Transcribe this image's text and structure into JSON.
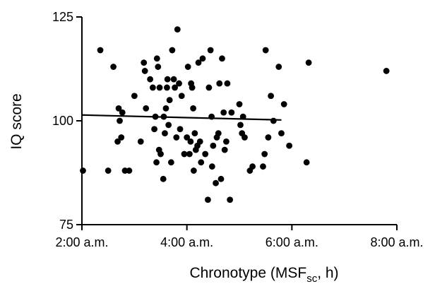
{
  "chart_data": {
    "type": "scatter",
    "xlabel_main": "Chronotype (MSF",
    "xlabel_sub": "sc",
    "xlabel_tail": ", h)",
    "ylabel": "IQ score",
    "xlim": [
      2,
      8
    ],
    "ylim": [
      75,
      125
    ],
    "xticks": [
      2,
      4,
      6,
      8
    ],
    "xtick_labels": [
      "2:00 a.m.",
      "4:00 a.m.",
      "6:00 a.m.",
      "8:00 a.m."
    ],
    "yticks": [
      75,
      100,
      125
    ],
    "ytick_labels": [
      "75",
      "100",
      "125"
    ],
    "trendline": {
      "x": [
        2.0,
        5.8
      ],
      "y": [
        101.4,
        100.2
      ]
    },
    "points": [
      {
        "x": 2.02,
        "y": 88
      },
      {
        "x": 2.35,
        "y": 117
      },
      {
        "x": 2.5,
        "y": 88
      },
      {
        "x": 2.6,
        "y": 113
      },
      {
        "x": 2.68,
        "y": 95
      },
      {
        "x": 2.7,
        "y": 103
      },
      {
        "x": 2.72,
        "y": 100
      },
      {
        "x": 2.75,
        "y": 96
      },
      {
        "x": 2.77,
        "y": 102
      },
      {
        "x": 2.82,
        "y": 88
      },
      {
        "x": 2.9,
        "y": 88
      },
      {
        "x": 3.0,
        "y": 106
      },
      {
        "x": 3.12,
        "y": 95
      },
      {
        "x": 3.18,
        "y": 114
      },
      {
        "x": 3.2,
        "y": 112
      },
      {
        "x": 3.22,
        "y": 103
      },
      {
        "x": 3.3,
        "y": 110
      },
      {
        "x": 3.35,
        "y": 108
      },
      {
        "x": 3.38,
        "y": 98
      },
      {
        "x": 3.4,
        "y": 101
      },
      {
        "x": 3.42,
        "y": 90
      },
      {
        "x": 3.43,
        "y": 115
      },
      {
        "x": 3.45,
        "y": 113
      },
      {
        "x": 3.47,
        "y": 93
      },
      {
        "x": 3.48,
        "y": 108
      },
      {
        "x": 3.5,
        "y": 92
      },
      {
        "x": 3.55,
        "y": 86
      },
      {
        "x": 3.56,
        "y": 101
      },
      {
        "x": 3.58,
        "y": 97
      },
      {
        "x": 3.6,
        "y": 103
      },
      {
        "x": 3.62,
        "y": 108
      },
      {
        "x": 3.63,
        "y": 110
      },
      {
        "x": 3.65,
        "y": 99
      },
      {
        "x": 3.67,
        "y": 105
      },
      {
        "x": 3.7,
        "y": 90
      },
      {
        "x": 3.72,
        "y": 117
      },
      {
        "x": 3.75,
        "y": 110
      },
      {
        "x": 3.77,
        "y": 108
      },
      {
        "x": 3.8,
        "y": 96
      },
      {
        "x": 3.82,
        "y": 122
      },
      {
        "x": 3.85,
        "y": 109
      },
      {
        "x": 3.87,
        "y": 98
      },
      {
        "x": 3.9,
        "y": 106
      },
      {
        "x": 3.95,
        "y": 92
      },
      {
        "x": 4.0,
        "y": 96
      },
      {
        "x": 4.02,
        "y": 113
      },
      {
        "x": 4.05,
        "y": 92
      },
      {
        "x": 4.07,
        "y": 95
      },
      {
        "x": 4.08,
        "y": 109
      },
      {
        "x": 4.1,
        "y": 108
      },
      {
        "x": 4.12,
        "y": 103
      },
      {
        "x": 4.13,
        "y": 88
      },
      {
        "x": 4.15,
        "y": 97
      },
      {
        "x": 4.17,
        "y": 93
      },
      {
        "x": 4.2,
        "y": 94
      },
      {
        "x": 4.22,
        "y": 114
      },
      {
        "x": 4.25,
        "y": 95
      },
      {
        "x": 4.27,
        "y": 90
      },
      {
        "x": 4.3,
        "y": 115
      },
      {
        "x": 4.35,
        "y": 92
      },
      {
        "x": 4.4,
        "y": 81
      },
      {
        "x": 4.42,
        "y": 108
      },
      {
        "x": 4.45,
        "y": 117
      },
      {
        "x": 4.47,
        "y": 101
      },
      {
        "x": 4.48,
        "y": 89
      },
      {
        "x": 4.5,
        "y": 94
      },
      {
        "x": 4.55,
        "y": 85
      },
      {
        "x": 4.57,
        "y": 96
      },
      {
        "x": 4.6,
        "y": 97
      },
      {
        "x": 4.62,
        "y": 109
      },
      {
        "x": 4.65,
        "y": 86
      },
      {
        "x": 4.67,
        "y": 115
      },
      {
        "x": 4.7,
        "y": 102
      },
      {
        "x": 4.72,
        "y": 93
      },
      {
        "x": 4.75,
        "y": 95
      },
      {
        "x": 4.77,
        "y": 109
      },
      {
        "x": 4.82,
        "y": 81
      },
      {
        "x": 4.85,
        "y": 102
      },
      {
        "x": 5.0,
        "y": 104
      },
      {
        "x": 5.02,
        "y": 99
      },
      {
        "x": 5.05,
        "y": 97
      },
      {
        "x": 5.07,
        "y": 101
      },
      {
        "x": 5.1,
        "y": 96
      },
      {
        "x": 5.2,
        "y": 88
      },
      {
        "x": 5.25,
        "y": 89
      },
      {
        "x": 5.45,
        "y": 89
      },
      {
        "x": 5.48,
        "y": 92
      },
      {
        "x": 5.5,
        "y": 117
      },
      {
        "x": 5.55,
        "y": 96
      },
      {
        "x": 5.6,
        "y": 106
      },
      {
        "x": 5.65,
        "y": 100
      },
      {
        "x": 5.75,
        "y": 113
      },
      {
        "x": 5.8,
        "y": 97
      },
      {
        "x": 5.85,
        "y": 104
      },
      {
        "x": 5.95,
        "y": 94
      },
      {
        "x": 6.28,
        "y": 90
      },
      {
        "x": 6.32,
        "y": 114
      },
      {
        "x": 7.8,
        "y": 112
      }
    ]
  }
}
